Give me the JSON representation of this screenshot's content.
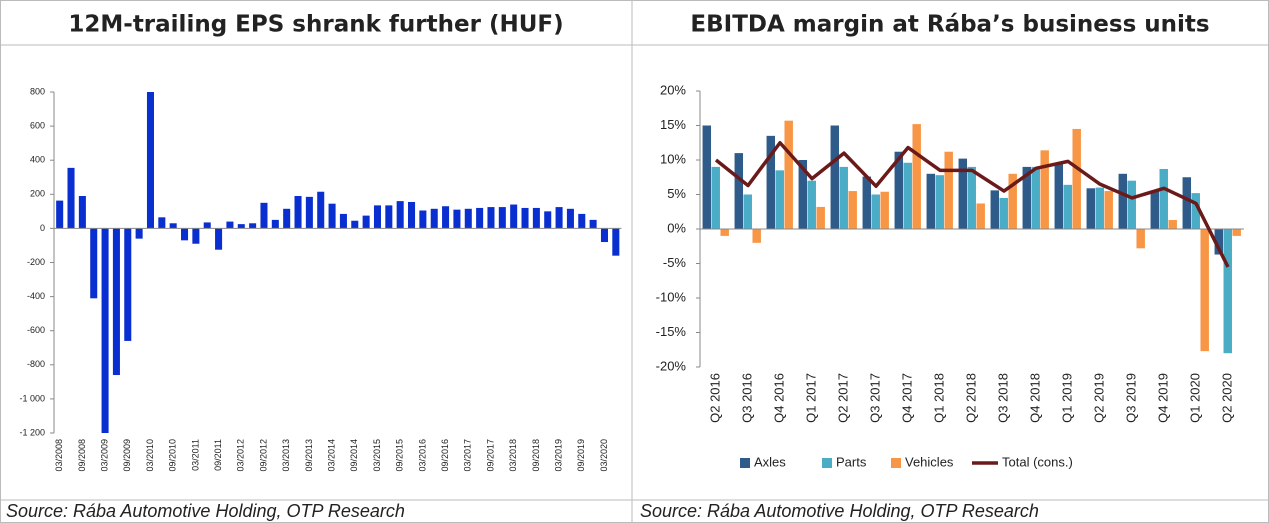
{
  "chart_data": [
    {
      "type": "bar",
      "title": "12M-trailing EPS shrank further (HUF)",
      "source": "Source: Rába Automotive Holding, OTP Research",
      "categories": [
        "03/2008",
        null,
        "09/2008",
        null,
        "03/2009",
        null,
        "09/2009",
        null,
        "03/2010",
        null,
        "09/2010",
        null,
        "03/2011",
        null,
        "09/2011",
        null,
        "03/2012",
        null,
        "09/2012",
        null,
        "03/2013",
        null,
        "09/2013",
        null,
        "03/2014",
        null,
        "09/2014",
        null,
        "03/2015",
        null,
        "09/2015",
        null,
        "03/2016",
        null,
        "09/2016",
        null,
        "03/2017",
        null,
        "09/2017",
        null,
        "03/2018",
        null,
        "09/2018",
        null,
        "03/2019",
        null,
        "09/2019",
        null,
        "03/2020",
        null
      ],
      "values": [
        163,
        355,
        190,
        -410,
        -1200,
        -860,
        -660,
        -60,
        800,
        65,
        30,
        -70,
        -90,
        35,
        -125,
        40,
        25,
        30,
        150,
        50,
        115,
        190,
        185,
        215,
        145,
        85,
        45,
        75,
        135,
        135,
        160,
        155,
        105,
        115,
        130,
        110,
        115,
        120,
        125,
        125,
        140,
        120,
        120,
        100,
        125,
        115,
        85,
        50,
        -80,
        -160
      ],
      "color": "#0a2fd0",
      "ylim": [
        -1200,
        800
      ],
      "yticks": [
        {
          "value": -1200,
          "label": "-1 200"
        },
        {
          "value": -1000,
          "label": "-1 000"
        },
        -800,
        -600,
        -400,
        -200,
        0,
        200,
        400,
        600,
        800
      ],
      "grid": false
    },
    {
      "type": "bar",
      "title": "EBITDA margin at Rába’s business units",
      "source": "Source: Rába Automotive Holding, OTP Research",
      "categories": [
        "Q2 2016",
        "Q3 2016",
        "Q4 2016",
        "Q1 2017",
        "Q2 2017",
        "Q3 2017",
        "Q4 2017",
        "Q1 2018",
        "Q2 2018",
        "Q3 2018",
        "Q4 2018",
        "Q1 2019",
        "Q2 2019",
        "Q3 2019",
        "Q4 2019",
        "Q1 2020",
        "Q2 2020"
      ],
      "series": [
        {
          "name": "Axles",
          "color": "#2e5b8a",
          "values": [
            15,
            11,
            13.5,
            10,
            15,
            7.6,
            11.2,
            8,
            10.2,
            5.6,
            9,
            9.5,
            5.9,
            8,
            5.5,
            7.5,
            -3.7
          ]
        },
        {
          "name": "Parts",
          "color": "#4bacc6",
          "values": [
            9,
            5,
            8.5,
            7,
            9,
            5,
            9.6,
            7.8,
            9,
            4.5,
            9,
            6.4,
            6,
            7,
            8.7,
            5.2,
            -18
          ]
        },
        {
          "name": "Vehicles",
          "color": "#f79646",
          "values": [
            -1,
            -2,
            15.7,
            3.2,
            5.5,
            5.4,
            15.2,
            11.2,
            3.7,
            8,
            11.4,
            14.5,
            5.5,
            -2.8,
            1.3,
            -17.7,
            -1
          ]
        },
        {
          "name": "Total (cons.)",
          "color": "#6b1a1a",
          "type": "line",
          "values": [
            10,
            6.3,
            12.5,
            7.3,
            11,
            6.2,
            11.8,
            8.5,
            8.5,
            5.5,
            8.8,
            9.8,
            6.5,
            4.5,
            5.9,
            3.7,
            -5.5
          ]
        }
      ],
      "ylim": [
        -20,
        20
      ],
      "yticks": [
        {
          "value": -20,
          "label": "-20%"
        },
        {
          "value": -15,
          "label": "-15%"
        },
        {
          "value": -10,
          "label": "-10%"
        },
        {
          "value": -5,
          "label": "-5%"
        },
        {
          "value": 0,
          "label": "0%"
        },
        {
          "value": 5,
          "label": "5%"
        },
        {
          "value": 10,
          "label": "10%"
        },
        {
          "value": 15,
          "label": "15%"
        },
        {
          "value": 20,
          "label": "20%"
        }
      ],
      "grid": false,
      "legend": "bottom"
    }
  ]
}
